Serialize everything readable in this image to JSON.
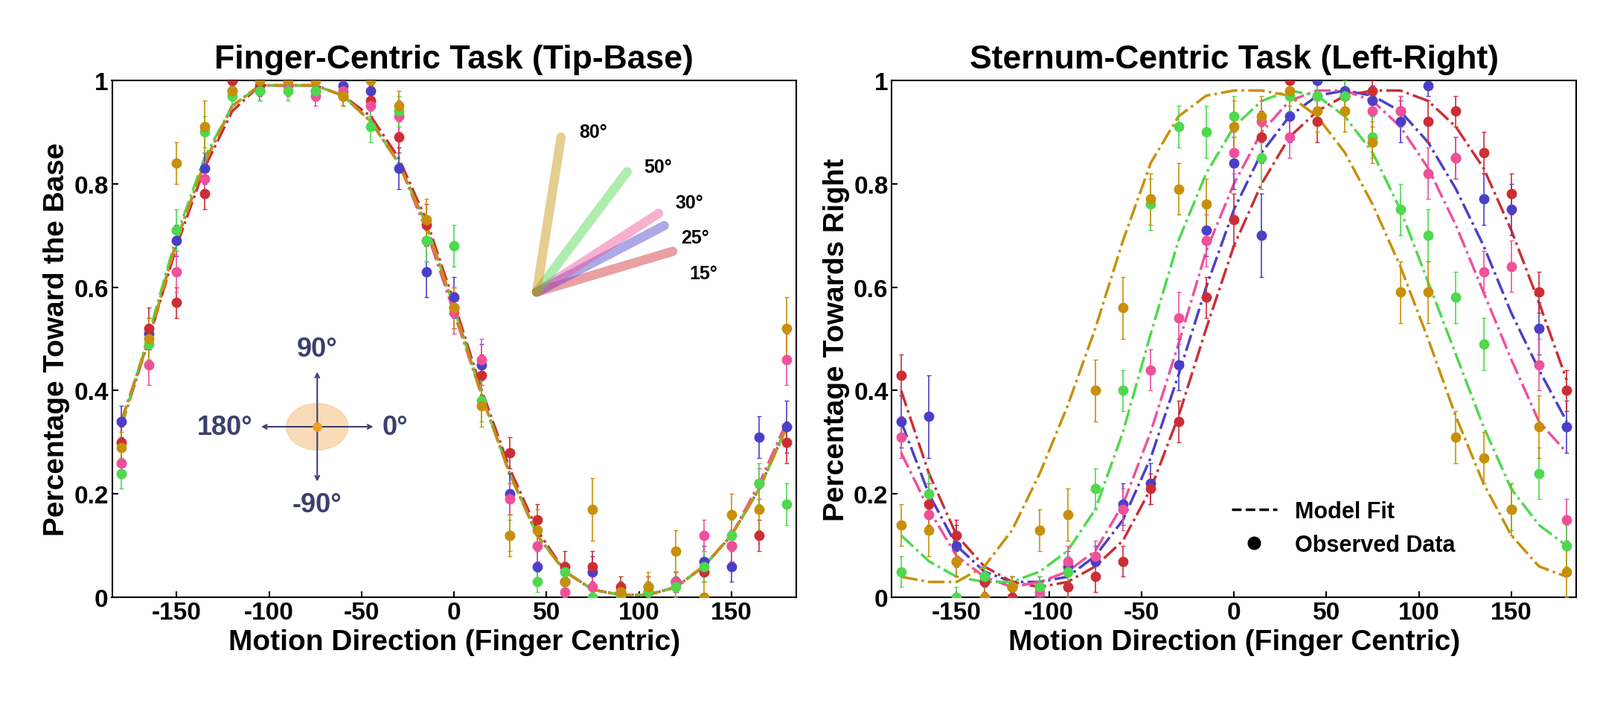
{
  "chart_data": [
    {
      "type": "scatter",
      "title": "Finger-Centric Task (Tip-Base)",
      "x_label": "Motion Direction (Finger Centric)",
      "y_label": "Percentage Toward the Base",
      "x": [
        -180,
        -165,
        -150,
        -135,
        -120,
        -105,
        -90,
        -75,
        -60,
        -45,
        -30,
        -15,
        0,
        15,
        30,
        45,
        60,
        75,
        90,
        105,
        120,
        135,
        150,
        165,
        180
      ],
      "xlim": [
        -185,
        185
      ],
      "xticks": [
        -150,
        -100,
        -50,
        0,
        50,
        100,
        150
      ],
      "ylim": [
        0,
        1
      ],
      "yticks": [
        0,
        0.2,
        0.4,
        0.6,
        0.8,
        1
      ],
      "grid": false,
      "marker": "o",
      "line_style": "dashdot",
      "annotations": [
        "90°",
        "180°",
        "0°",
        "-90°"
      ],
      "series": [
        {
          "name": "25°",
          "color": "#4b3fc8",
          "arm_angle": 25,
          "values": [
            0.34,
            0.51,
            0.69,
            0.83,
            1.0,
            0.98,
            1.0,
            0.98,
            0.99,
            0.98,
            0.83,
            0.63,
            0.58,
            0.45,
            0.2,
            0.06,
            0.03,
            0.05,
            0.01,
            0.01,
            0.03,
            0.07,
            0.06,
            0.31,
            0.33
          ],
          "errors": [
            0.03,
            0.03,
            0.03,
            0.03,
            0.01,
            0.02,
            0.01,
            0.02,
            0.02,
            0.02,
            0.04,
            0.05,
            0.04,
            0.04,
            0.04,
            0.03,
            0.03,
            0.03,
            0.02,
            0.02,
            0.02,
            0.03,
            0.03,
            0.04,
            0.05
          ],
          "fit": [
            0.34,
            0.5,
            0.69,
            0.84,
            0.95,
            0.99,
            0.99,
            0.99,
            0.97,
            0.92,
            0.84,
            0.72,
            0.56,
            0.39,
            0.24,
            0.12,
            0.05,
            0.015,
            0.005,
            0.005,
            0.02,
            0.06,
            0.12,
            0.21,
            0.33
          ]
        },
        {
          "name": "15°",
          "color": "#cc2e35",
          "arm_angle": 15,
          "values": [
            0.3,
            0.52,
            0.57,
            0.78,
            1.0,
            0.99,
            1.0,
            1.0,
            0.97,
            0.96,
            0.89,
            0.72,
            0.56,
            0.43,
            0.28,
            0.15,
            0.06,
            0.06,
            0.02,
            0.02,
            0.03,
            0.05,
            0.1,
            0.12,
            0.3
          ],
          "errors": [
            0.03,
            0.04,
            0.03,
            0.03,
            0.01,
            0.02,
            0.01,
            0.02,
            0.02,
            0.03,
            0.03,
            0.04,
            0.04,
            0.04,
            0.03,
            0.03,
            0.03,
            0.03,
            0.02,
            0.02,
            0.02,
            0.02,
            0.03,
            0.03,
            0.04
          ],
          "fit": [
            0.33,
            0.5,
            0.68,
            0.83,
            0.94,
            0.99,
            0.99,
            0.99,
            0.97,
            0.93,
            0.85,
            0.73,
            0.57,
            0.4,
            0.25,
            0.13,
            0.05,
            0.015,
            0.005,
            0.005,
            0.02,
            0.06,
            0.12,
            0.21,
            0.33
          ]
        },
        {
          "name": "30°",
          "color": "#f0509a",
          "arm_angle": 30,
          "values": [
            0.26,
            0.45,
            0.63,
            0.81,
            0.98,
            1.0,
            0.99,
            0.97,
            0.98,
            0.95,
            0.93,
            0.69,
            0.55,
            0.46,
            0.19,
            0.1,
            0.01,
            0.02,
            0.01,
            0.01,
            0.03,
            0.12,
            0.1,
            0.22,
            0.46
          ],
          "errors": [
            0.03,
            0.04,
            0.04,
            0.03,
            0.02,
            0.01,
            0.02,
            0.02,
            0.02,
            0.03,
            0.03,
            0.04,
            0.04,
            0.04,
            0.03,
            0.03,
            0.02,
            0.02,
            0.02,
            0.02,
            0.02,
            0.03,
            0.03,
            0.03,
            0.05
          ],
          "fit": [
            0.34,
            0.5,
            0.69,
            0.84,
            0.95,
            0.99,
            0.99,
            0.99,
            0.97,
            0.92,
            0.84,
            0.71,
            0.55,
            0.39,
            0.24,
            0.12,
            0.05,
            0.015,
            0.005,
            0.005,
            0.02,
            0.06,
            0.12,
            0.22,
            0.34
          ]
        },
        {
          "name": "50°",
          "color": "#4ed94e",
          "arm_angle": 50,
          "values": [
            0.24,
            0.49,
            0.71,
            0.9,
            0.97,
            0.98,
            0.98,
            0.98,
            0.97,
            0.91,
            0.94,
            0.69,
            0.68,
            0.38,
            0.12,
            0.03,
            0.05,
            0.0,
            0.0,
            0.01,
            0.02,
            0.06,
            0.12,
            0.22,
            0.18
          ],
          "errors": [
            0.03,
            0.03,
            0.04,
            0.03,
            0.02,
            0.02,
            0.02,
            0.02,
            0.02,
            0.03,
            0.03,
            0.04,
            0.04,
            0.04,
            0.03,
            0.02,
            0.02,
            0.01,
            0.01,
            0.02,
            0.02,
            0.03,
            0.03,
            0.04,
            0.04
          ],
          "fit": [
            0.33,
            0.51,
            0.7,
            0.85,
            0.95,
            0.99,
            0.99,
            0.99,
            0.97,
            0.92,
            0.84,
            0.72,
            0.56,
            0.39,
            0.24,
            0.12,
            0.05,
            0.015,
            0.005,
            0.005,
            0.02,
            0.06,
            0.12,
            0.21,
            0.33
          ]
        },
        {
          "name": "80°",
          "color": "#c8900a",
          "arm_angle": 80,
          "values": [
            0.29,
            0.5,
            0.84,
            0.91,
            0.98,
            1.0,
            1.0,
            1.0,
            0.97,
            1.0,
            0.95,
            0.73,
            0.56,
            0.37,
            0.12,
            0.13,
            0.03,
            0.17,
            0.01,
            0.02,
            0.09,
            0.0,
            0.16,
            0.17,
            0.52
          ],
          "errors": [
            0.03,
            0.04,
            0.04,
            0.05,
            0.02,
            0.01,
            0.01,
            0.01,
            0.02,
            0.02,
            0.03,
            0.04,
            0.04,
            0.04,
            0.04,
            0.04,
            0.03,
            0.06,
            0.02,
            0.03,
            0.04,
            0.03,
            0.04,
            0.04,
            0.06
          ],
          "fit": [
            0.34,
            0.5,
            0.69,
            0.84,
            0.95,
            0.99,
            0.99,
            0.99,
            0.97,
            0.92,
            0.84,
            0.72,
            0.56,
            0.39,
            0.24,
            0.12,
            0.05,
            0.015,
            0.005,
            0.005,
            0.02,
            0.06,
            0.12,
            0.21,
            0.33
          ]
        }
      ]
    },
    {
      "type": "scatter",
      "title": "Sternum-Centric Task (Left-Right)",
      "x_label": "Motion Direction (Finger Centric)",
      "y_label": "Percentage Towards Right",
      "x": [
        -180,
        -165,
        -150,
        -135,
        -120,
        -105,
        -90,
        -75,
        -60,
        -45,
        -30,
        -15,
        0,
        15,
        30,
        45,
        60,
        75,
        90,
        105,
        120,
        135,
        150,
        165,
        180
      ],
      "xlim": [
        -185,
        185
      ],
      "xticks": [
        -150,
        -100,
        -50,
        0,
        50,
        100,
        150
      ],
      "ylim": [
        0,
        1
      ],
      "yticks": [
        0,
        0.2,
        0.4,
        0.6,
        0.8,
        1
      ],
      "grid": false,
      "marker": "o",
      "line_style": "dashdot",
      "legend": "lower center",
      "legend_labels": [
        "Model Fit",
        "Observed Data"
      ],
      "series": [
        {
          "color": "#4b3fc8",
          "values": [
            0.34,
            0.35,
            0.1,
            0.03,
            0.02,
            0.0,
            0.06,
            0.07,
            0.18,
            0.22,
            0.45,
            0.71,
            0.84,
            0.7,
            0.93,
            1.0,
            0.98,
            0.96,
            0.92,
            0.99,
            0.85,
            0.77,
            0.75,
            0.52,
            0.33
          ],
          "errors": [
            0.05,
            0.08,
            0.04,
            0.03,
            0.02,
            0.01,
            0.03,
            0.03,
            0.04,
            0.04,
            0.05,
            0.05,
            0.05,
            0.08,
            0.05,
            0.02,
            0.02,
            0.03,
            0.04,
            0.02,
            0.04,
            0.05,
            0.05,
            0.05,
            0.05
          ],
          "fit": [
            0.34,
            0.2,
            0.1,
            0.05,
            0.03,
            0.03,
            0.04,
            0.08,
            0.15,
            0.27,
            0.43,
            0.6,
            0.75,
            0.86,
            0.93,
            0.97,
            0.98,
            0.97,
            0.94,
            0.88,
            0.79,
            0.68,
            0.55,
            0.44,
            0.34
          ]
        },
        {
          "color": "#cc2e35",
          "values": [
            0.43,
            0.18,
            0.12,
            0.03,
            0.0,
            0.02,
            0.02,
            0.04,
            0.07,
            0.21,
            0.34,
            0.58,
            0.73,
            0.89,
            1.0,
            0.92,
            0.97,
            0.98,
            0.94,
            0.92,
            0.94,
            0.86,
            0.78,
            0.59,
            0.4
          ],
          "errors": [
            0.04,
            0.04,
            0.03,
            0.02,
            0.01,
            0.02,
            0.02,
            0.03,
            0.03,
            0.03,
            0.04,
            0.04,
            0.05,
            0.05,
            0.02,
            0.04,
            0.03,
            0.02,
            0.03,
            0.04,
            0.03,
            0.04,
            0.04,
            0.04,
            0.04
          ],
          "fit": [
            0.4,
            0.24,
            0.12,
            0.06,
            0.03,
            0.02,
            0.03,
            0.06,
            0.11,
            0.21,
            0.35,
            0.52,
            0.68,
            0.8,
            0.89,
            0.94,
            0.97,
            0.98,
            0.98,
            0.96,
            0.91,
            0.83,
            0.71,
            0.57,
            0.42
          ]
        },
        {
          "color": "#f0509a",
          "values": [
            0.31,
            0.16,
            0.07,
            0.04,
            0.02,
            0.01,
            0.07,
            0.08,
            0.17,
            0.44,
            0.54,
            0.69,
            0.86,
            0.92,
            0.89,
            0.97,
            0.97,
            0.94,
            0.94,
            0.82,
            0.85,
            0.63,
            0.64,
            0.45,
            0.15
          ],
          "errors": [
            0.04,
            0.03,
            0.03,
            0.02,
            0.02,
            0.02,
            0.03,
            0.03,
            0.04,
            0.04,
            0.05,
            0.05,
            0.04,
            0.04,
            0.04,
            0.03,
            0.03,
            0.03,
            0.03,
            0.05,
            0.04,
            0.04,
            0.05,
            0.05,
            0.04
          ],
          "fit": [
            0.28,
            0.17,
            0.08,
            0.04,
            0.02,
            0.03,
            0.05,
            0.09,
            0.18,
            0.32,
            0.49,
            0.67,
            0.8,
            0.9,
            0.96,
            0.98,
            0.98,
            0.96,
            0.91,
            0.83,
            0.72,
            0.59,
            0.46,
            0.34,
            0.28
          ]
        },
        {
          "color": "#4ed94e",
          "values": [
            0.05,
            0.2,
            0.0,
            0.04,
            0.02,
            0.02,
            0.05,
            0.21,
            0.4,
            0.76,
            0.91,
            0.9,
            0.93,
            0.85,
            0.97,
            0.97,
            0.97,
            0.89,
            0.75,
            0.7,
            0.58,
            0.49,
            0.17,
            0.24,
            0.1
          ],
          "errors": [
            0.03,
            0.04,
            0.02,
            0.02,
            0.02,
            0.02,
            0.03,
            0.04,
            0.04,
            0.05,
            0.04,
            0.05,
            0.04,
            0.06,
            0.03,
            0.03,
            0.03,
            0.04,
            0.05,
            0.05,
            0.05,
            0.05,
            0.04,
            0.05,
            0.04
          ],
          "fit": [
            0.12,
            0.07,
            0.04,
            0.03,
            0.03,
            0.05,
            0.09,
            0.17,
            0.32,
            0.51,
            0.69,
            0.82,
            0.91,
            0.96,
            0.98,
            0.97,
            0.93,
            0.86,
            0.75,
            0.61,
            0.47,
            0.33,
            0.21,
            0.14,
            0.1
          ]
        },
        {
          "color": "#c8900a",
          "values": [
            0.14,
            0.13,
            0.07,
            0.0,
            0.02,
            0.13,
            0.16,
            0.4,
            0.56,
            0.77,
            0.79,
            0.76,
            0.91,
            0.93,
            0.98,
            0.94,
            0.94,
            0.88,
            0.59,
            0.59,
            0.31,
            0.27,
            0.17,
            0.33,
            0.05
          ],
          "errors": [
            0.04,
            0.05,
            0.03,
            0.02,
            0.02,
            0.04,
            0.05,
            0.06,
            0.06,
            0.05,
            0.05,
            0.05,
            0.05,
            0.04,
            0.03,
            0.04,
            0.04,
            0.04,
            0.06,
            0.06,
            0.05,
            0.05,
            0.05,
            0.06,
            0.05
          ],
          "fit": [
            0.04,
            0.03,
            0.03,
            0.06,
            0.13,
            0.24,
            0.37,
            0.52,
            0.69,
            0.84,
            0.93,
            0.97,
            0.98,
            0.98,
            0.97,
            0.93,
            0.86,
            0.76,
            0.64,
            0.5,
            0.35,
            0.22,
            0.12,
            0.06,
            0.04
          ]
        }
      ]
    }
  ]
}
